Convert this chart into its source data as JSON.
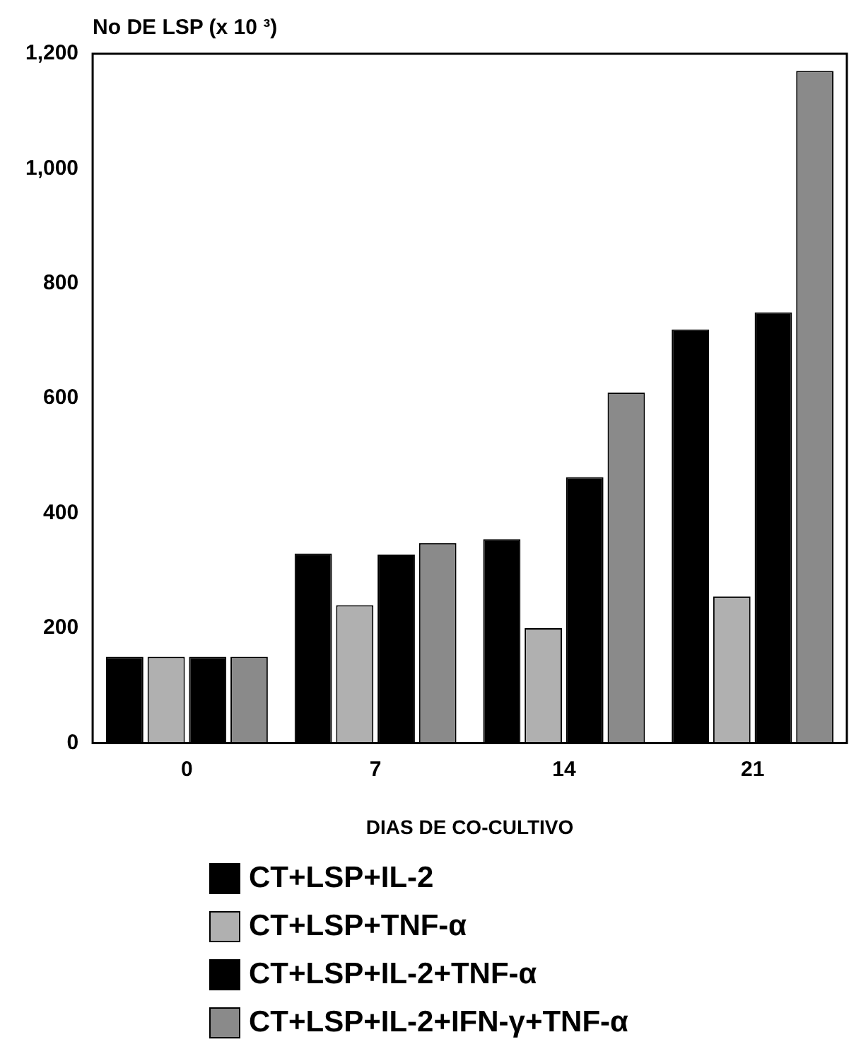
{
  "chart_data": {
    "type": "bar",
    "ylabel": "No DE LSP (x 10 ³)",
    "xlabel": "DIAS DE CO-CULTIVO",
    "categories": [
      "0",
      "7",
      "14",
      "21"
    ],
    "series": [
      {
        "name": "CT+LSP+IL-2",
        "color": "#000000",
        "values": [
          150,
          330,
          355,
          720
        ]
      },
      {
        "name": "CT+LSP+TNF-α",
        "color": "#b0b0b0",
        "values": [
          150,
          240,
          200,
          255
        ]
      },
      {
        "name": "CT+LSP+IL-2+TNF-α",
        "color": "#000000",
        "values": [
          150,
          328,
          463,
          750
        ]
      },
      {
        "name": "CT+LSP+IL-2+IFN-γ+TNF-α",
        "color": "#8a8a8a",
        "values": [
          150,
          348,
          610,
          1170
        ]
      }
    ],
    "ylim": [
      0,
      1200
    ],
    "yticks": [
      0,
      {
        "value": 200,
        "label": "200"
      },
      {
        "value": 400,
        "label": "400"
      },
      {
        "value": 600,
        "label": "600"
      },
      {
        "value": 800,
        "label": "800"
      },
      {
        "value": 1000,
        "label": "1,000"
      },
      {
        "value": 1200,
        "label": "1,200"
      }
    ],
    "grid": false,
    "legend": "bottom"
  }
}
